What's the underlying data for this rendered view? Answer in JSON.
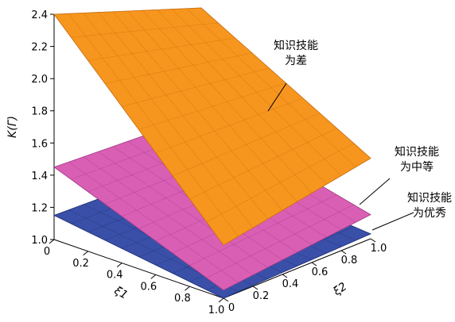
{
  "chart_data": {
    "type": "surface3d",
    "title": "",
    "axes": {
      "z": {
        "label": "K(Γ)",
        "range": [
          1.0,
          2.4
        ],
        "ticks": [
          "1.0",
          "1.2",
          "1.4",
          "1.6",
          "1.8",
          "2.0",
          "2.2",
          "2.4"
        ]
      },
      "xi1": {
        "label": "ξ1",
        "range": [
          0,
          1.0
        ],
        "ticks": [
          "0",
          "0.2",
          "0.4",
          "0.6",
          "0.8",
          "1.0"
        ]
      },
      "xi2": {
        "label": "ξ2",
        "range": [
          0,
          1.0
        ],
        "ticks": [
          "0",
          "0.2",
          "0.4",
          "0.6",
          "0.8",
          "1.0"
        ]
      }
    },
    "corner_values_note": "corner K values estimated at (xi1,xi2) = (0,0),(1,0),(0,1),(1,1)",
    "surfaces": [
      {
        "name": "知识技能为差",
        "color": "#f7961e",
        "grid_color": "#c96e10",
        "corners": {
          "z00": 2.4,
          "z10": 1.33,
          "z01": 2.07,
          "z11": 1.5
        }
      },
      {
        "name": "知识技能为中等",
        "color": "#d95fb5",
        "grid_color": "#a33c85",
        "corners": {
          "z00": 1.45,
          "z10": 1.05,
          "z01": 1.4,
          "z11": 1.15
        }
      },
      {
        "name": "知识技能为优秀",
        "color": "#3a50a8",
        "grid_color": "#1f2f78",
        "corners": {
          "z00": 1.15,
          "z10": 1.0,
          "z01": 1.12,
          "z11": 1.03
        }
      }
    ],
    "annotations": [
      {
        "lines": [
          "知识技能",
          "为差"
        ]
      },
      {
        "lines": [
          "知识技能",
          "为中等"
        ]
      },
      {
        "lines": [
          "知识技能",
          "为优秀"
        ]
      }
    ]
  }
}
